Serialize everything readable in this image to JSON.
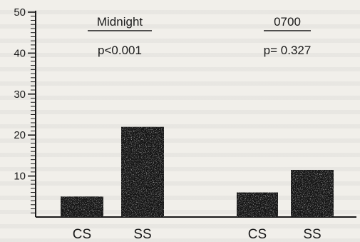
{
  "chart_data": {
    "type": "bar",
    "ylim": [
      0,
      50
    ],
    "yticks": [
      10,
      20,
      30,
      40,
      50
    ],
    "groups": [
      {
        "title": "Midnight",
        "pvalue": "p<0.001",
        "bars": [
          {
            "category": "CS",
            "value": 5
          },
          {
            "category": "SS",
            "value": 22
          }
        ]
      },
      {
        "title": "0700",
        "pvalue": "p= 0.327",
        "bars": [
          {
            "category": "CS",
            "value": 6
          },
          {
            "category": "SS",
            "value": 11.5
          }
        ]
      }
    ],
    "grid": false,
    "colors": {
      "bar": "#161616",
      "axis": "#1a1a1a"
    }
  }
}
